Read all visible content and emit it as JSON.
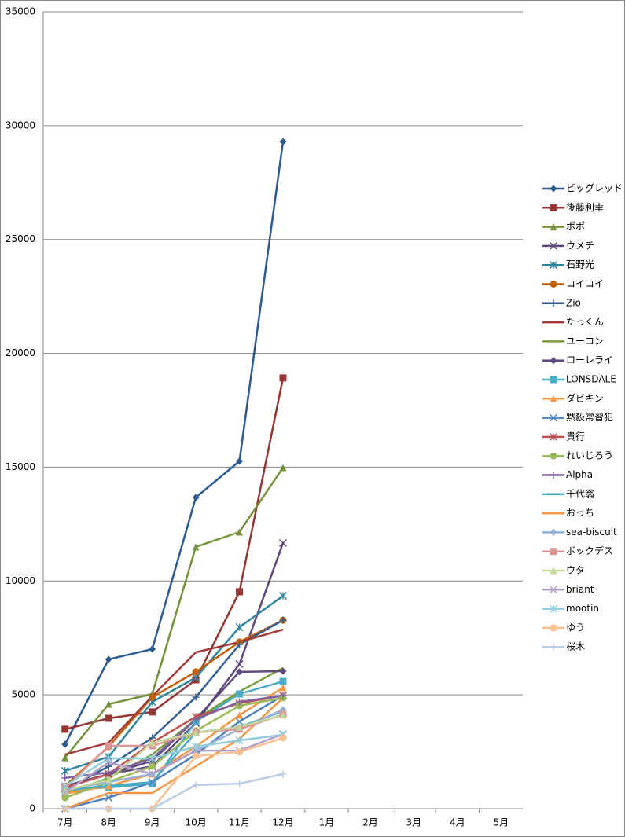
{
  "chart_data": {
    "type": "line",
    "categories": [
      "7月",
      "8月",
      "9月",
      "10月",
      "11月",
      "12月",
      "1月",
      "2月",
      "3月",
      "4月",
      "5月"
    ],
    "ylim": [
      0,
      35000
    ],
    "yticks": [
      0,
      5000,
      10000,
      15000,
      20000,
      25000,
      30000,
      35000
    ],
    "grid": true,
    "legend": "right",
    "series": [
      {
        "name": "ビッグレッド",
        "color": "#2c5a91",
        "marker": "diamond",
        "values": [
          2830,
          6560,
          7010,
          13670,
          15260,
          29300,
          null,
          null,
          null,
          null,
          null
        ]
      },
      {
        "name": "後藤利幸",
        "color": "#953735",
        "marker": "square",
        "values": [
          3490,
          3970,
          4250,
          5660,
          9530,
          18920,
          null,
          null,
          null,
          null,
          null
        ]
      },
      {
        "name": "ポポ",
        "color": "#76923c",
        "marker": "triangle",
        "values": [
          2240,
          4590,
          5040,
          11500,
          12150,
          14980,
          null,
          null,
          null,
          null,
          null
        ]
      },
      {
        "name": "ウメチ",
        "color": "#5f497a",
        "marker": "x",
        "values": [
          1000,
          1520,
          1860,
          3760,
          6350,
          11670,
          null,
          null,
          null,
          null,
          null
        ]
      },
      {
        "name": "石野光",
        "color": "#31859c",
        "marker": "asterisk",
        "values": [
          1660,
          2280,
          4690,
          5760,
          7970,
          9350,
          null,
          null,
          null,
          null,
          null
        ]
      },
      {
        "name": "コイコイ",
        "color": "#c0600a",
        "marker": "circle",
        "values": [
          1000,
          2730,
          4900,
          6010,
          7320,
          8280,
          null,
          null,
          null,
          null,
          null
        ]
      },
      {
        "name": "Zio",
        "color": "#376092",
        "marker": "plus",
        "values": [
          830,
          1860,
          3110,
          4900,
          7210,
          8280,
          null,
          null,
          null,
          null,
          null
        ]
      },
      {
        "name": "たっくん",
        "color": "#a33c38",
        "marker": "none",
        "values": [
          2380,
          2900,
          4940,
          6870,
          7320,
          7870,
          null,
          null,
          null,
          null,
          null
        ]
      },
      {
        "name": "ユーコン",
        "color": "#77a03a",
        "marker": "none",
        "values": [
          660,
          1350,
          2380,
          3930,
          5140,
          6180,
          null,
          null,
          null,
          null,
          null
        ]
      },
      {
        "name": "ローレライ",
        "color": "#604a7b",
        "marker": "diamond",
        "values": [
          930,
          1520,
          2100,
          3930,
          6010,
          6040,
          null,
          null,
          null,
          null,
          null
        ]
      },
      {
        "name": "LONSDALE",
        "color": "#4bacc6",
        "marker": "square",
        "values": [
          830,
          930,
          1100,
          3830,
          5040,
          5590,
          null,
          null,
          null,
          null,
          null
        ]
      },
      {
        "name": "ダビキン",
        "color": "#f79646",
        "marker": "triangle",
        "values": [
          660,
          1000,
          1520,
          2730,
          4110,
          5320,
          null,
          null,
          null,
          null,
          null
        ]
      },
      {
        "name": "黙殺常習犯",
        "color": "#4f81bd",
        "marker": "x",
        "values": [
          0,
          480,
          1170,
          2380,
          3830,
          4970,
          null,
          null,
          null,
          null,
          null
        ]
      },
      {
        "name": "貴行",
        "color": "#c0504d",
        "marker": "asterisk",
        "values": [
          930,
          1520,
          2900,
          4040,
          4630,
          4970,
          null,
          null,
          null,
          null,
          null
        ]
      },
      {
        "name": "れいじろう",
        "color": "#9bbb59",
        "marker": "circle",
        "values": [
          480,
          1170,
          1860,
          3420,
          4520,
          4870,
          null,
          null,
          null,
          null,
          null
        ]
      },
      {
        "name": "Alpha",
        "color": "#8064a2",
        "marker": "plus",
        "values": [
          1350,
          1590,
          2210,
          3930,
          4690,
          4970,
          null,
          null,
          null,
          null,
          null
        ]
      },
      {
        "name": "千代翁",
        "color": "#4bacc6",
        "marker": "none",
        "values": [
          830,
          1000,
          1170,
          3350,
          3590,
          4280,
          null,
          null,
          null,
          null,
          null
        ]
      },
      {
        "name": "おっち",
        "color": "#f79646",
        "marker": "none",
        "values": [
          0,
          690,
          690,
          1860,
          3070,
          4870,
          null,
          null,
          null,
          null,
          null
        ]
      },
      {
        "name": "sea-biscuit",
        "color": "#95b3d7",
        "marker": "diamond",
        "values": [
          830,
          1170,
          1520,
          2550,
          3490,
          4350,
          null,
          null,
          null,
          null,
          null
        ]
      },
      {
        "name": "ボックデス",
        "color": "#d99694",
        "marker": "square",
        "values": [
          900,
          2760,
          2760,
          3350,
          3490,
          4140,
          null,
          null,
          null,
          null,
          null
        ]
      },
      {
        "name": "ウタ",
        "color": "#c3d69b",
        "marker": "triangle",
        "values": [
          790,
          1280,
          2900,
          3350,
          3590,
          4110,
          null,
          null,
          null,
          null,
          null
        ]
      },
      {
        "name": "briant",
        "color": "#b3a2c7",
        "marker": "x",
        "values": [
          720,
          2040,
          1520,
          2550,
          2550,
          3280,
          null,
          null,
          null,
          null,
          null
        ]
      },
      {
        "name": "mootin",
        "color": "#93cddd",
        "marker": "asterisk",
        "values": [
          1000,
          2210,
          2210,
          2730,
          3000,
          3250,
          null,
          null,
          null,
          null,
          null
        ]
      },
      {
        "name": "ゆう",
        "color": "#fac090",
        "marker": "circle",
        "values": [
          0,
          0,
          0,
          2310,
          2490,
          3110,
          null,
          null,
          null,
          null,
          null
        ]
      },
      {
        "name": "桜木",
        "color": "#b9cde5",
        "marker": "plus",
        "values": [
          0,
          0,
          0,
          1040,
          1100,
          1520,
          null,
          null,
          null,
          null,
          null
        ]
      }
    ]
  }
}
